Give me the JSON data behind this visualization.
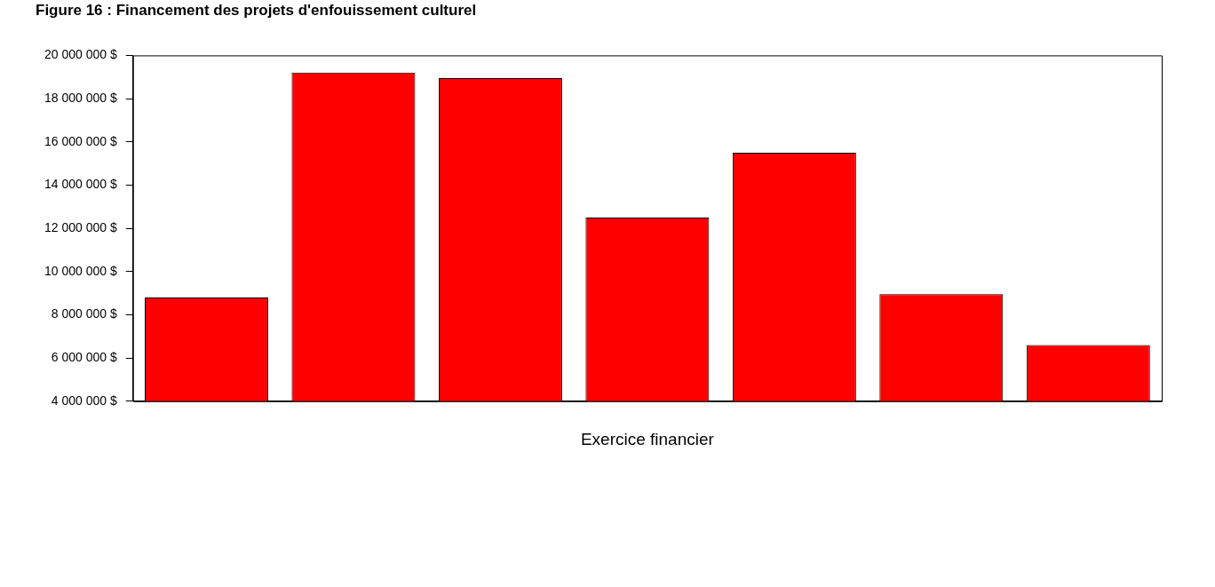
{
  "chart_data": {
    "type": "bar",
    "title": "Figure 16 : Financement des projets d'enfouissement culturel",
    "xlabel": "Exercice financier",
    "categories": [
      null,
      null,
      null,
      null,
      null,
      null,
      null
    ],
    "values": [
      8800000,
      19200000,
      18950000,
      12500000,
      15500000,
      8950000,
      6600000
    ],
    "color": "#ff0000",
    "ylim": [
      4000000,
      20000000
    ],
    "yticks": [
      {
        "value": 4000000,
        "label": "4 000 000 $"
      },
      {
        "value": 6000000,
        "label": "6 000 000 $"
      },
      {
        "value": 8000000,
        "label": "8 000 000 $"
      },
      {
        "value": 10000000,
        "label": "10 000 000 $"
      },
      {
        "value": 12000000,
        "label": "12 000 000 $"
      },
      {
        "value": 14000000,
        "label": "14 000 000 $"
      },
      {
        "value": 16000000,
        "label": "16 000 000 $"
      },
      {
        "value": 18000000,
        "label": "18 000 000 $"
      },
      {
        "value": 20000000,
        "label": "20 000 000 $"
      }
    ],
    "grid": false,
    "legend": false
  }
}
